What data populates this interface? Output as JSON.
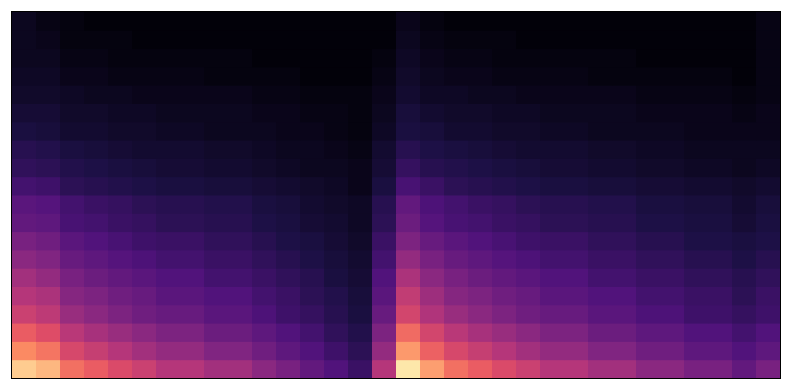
{
  "chart_data": {
    "type": "heatmap",
    "colormap": "magma",
    "origin": "lower",
    "zlim": [
      0,
      0.9
    ],
    "z": [
      [
        0.81,
        0.77,
        0.63,
        0.59,
        0.54,
        0.5,
        0.45,
        0.45,
        0.41,
        0.41,
        0.36,
        0.32,
        0.27,
        0.23,
        0.18,
        0.45,
        0.86,
        0.72,
        0.63,
        0.59,
        0.54,
        0.5,
        0.45,
        0.45,
        0.41,
        0.41,
        0.36,
        0.36,
        0.32,
        0.32,
        0.27,
        0.32
      ],
      [
        0.68,
        0.64,
        0.53,
        0.49,
        0.45,
        0.41,
        0.38,
        0.38,
        0.34,
        0.34,
        0.3,
        0.26,
        0.23,
        0.19,
        0.15,
        0.38,
        0.71,
        0.6,
        0.53,
        0.49,
        0.45,
        0.41,
        0.38,
        0.38,
        0.34,
        0.34,
        0.3,
        0.3,
        0.26,
        0.26,
        0.23,
        0.26
      ],
      [
        0.59,
        0.55,
        0.46,
        0.42,
        0.39,
        0.36,
        0.33,
        0.33,
        0.29,
        0.29,
        0.26,
        0.23,
        0.2,
        0.16,
        0.13,
        0.33,
        0.62,
        0.52,
        0.46,
        0.42,
        0.39,
        0.36,
        0.33,
        0.33,
        0.29,
        0.29,
        0.26,
        0.26,
        0.23,
        0.23,
        0.2,
        0.23
      ],
      [
        0.5,
        0.47,
        0.39,
        0.36,
        0.33,
        0.3,
        0.28,
        0.28,
        0.25,
        0.25,
        0.22,
        0.19,
        0.17,
        0.14,
        0.11,
        0.28,
        0.52,
        0.44,
        0.39,
        0.36,
        0.33,
        0.3,
        0.28,
        0.28,
        0.25,
        0.25,
        0.22,
        0.22,
        0.19,
        0.19,
        0.17,
        0.19
      ],
      [
        0.45,
        0.43,
        0.35,
        0.33,
        0.3,
        0.28,
        0.25,
        0.25,
        0.23,
        0.23,
        0.2,
        0.18,
        0.15,
        0.13,
        0.1,
        0.25,
        0.48,
        0.4,
        0.35,
        0.33,
        0.3,
        0.28,
        0.25,
        0.25,
        0.23,
        0.23,
        0.2,
        0.2,
        0.18,
        0.18,
        0.15,
        0.18
      ],
      [
        0.41,
        0.38,
        0.32,
        0.29,
        0.27,
        0.25,
        0.23,
        0.23,
        0.2,
        0.2,
        0.18,
        0.16,
        0.14,
        0.11,
        0.09,
        0.23,
        0.43,
        0.36,
        0.32,
        0.29,
        0.27,
        0.25,
        0.23,
        0.23,
        0.2,
        0.2,
        0.18,
        0.18,
        0.16,
        0.16,
        0.14,
        0.16
      ],
      [
        0.36,
        0.34,
        0.28,
        0.26,
        0.24,
        0.22,
        0.2,
        0.2,
        0.18,
        0.18,
        0.16,
        0.14,
        0.12,
        0.1,
        0.08,
        0.2,
        0.38,
        0.32,
        0.28,
        0.26,
        0.24,
        0.22,
        0.2,
        0.2,
        0.18,
        0.18,
        0.16,
        0.16,
        0.14,
        0.14,
        0.12,
        0.14
      ],
      [
        0.32,
        0.3,
        0.25,
        0.23,
        0.21,
        0.19,
        0.18,
        0.18,
        0.16,
        0.16,
        0.14,
        0.12,
        0.11,
        0.09,
        0.07,
        0.18,
        0.33,
        0.28,
        0.25,
        0.23,
        0.21,
        0.19,
        0.18,
        0.18,
        0.16,
        0.16,
        0.14,
        0.14,
        0.12,
        0.12,
        0.11,
        0.12
      ],
      [
        0.27,
        0.26,
        0.21,
        0.2,
        0.18,
        0.17,
        0.15,
        0.15,
        0.14,
        0.14,
        0.12,
        0.11,
        0.09,
        0.08,
        0.06,
        0.15,
        0.29,
        0.24,
        0.21,
        0.2,
        0.18,
        0.17,
        0.15,
        0.15,
        0.14,
        0.14,
        0.12,
        0.12,
        0.11,
        0.11,
        0.09,
        0.11
      ],
      [
        0.25,
        0.24,
        0.2,
        0.18,
        0.17,
        0.15,
        0.14,
        0.14,
        0.13,
        0.13,
        0.11,
        0.1,
        0.08,
        0.07,
        0.06,
        0.14,
        0.27,
        0.22,
        0.2,
        0.18,
        0.17,
        0.15,
        0.14,
        0.14,
        0.13,
        0.13,
        0.11,
        0.11,
        0.1,
        0.1,
        0.08,
        0.1
      ],
      [
        0.2,
        0.19,
        0.15,
        0.14,
        0.13,
        0.12,
        0.11,
        0.11,
        0.1,
        0.1,
        0.09,
        0.08,
        0.07,
        0.06,
        0.04,
        0.11,
        0.21,
        0.18,
        0.15,
        0.14,
        0.13,
        0.12,
        0.11,
        0.11,
        0.1,
        0.1,
        0.09,
        0.09,
        0.08,
        0.08,
        0.07,
        0.08
      ],
      [
        0.16,
        0.15,
        0.13,
        0.12,
        0.11,
        0.1,
        0.09,
        0.09,
        0.08,
        0.08,
        0.07,
        0.06,
        0.05,
        0.05,
        0.04,
        0.09,
        0.17,
        0.14,
        0.13,
        0.12,
        0.11,
        0.1,
        0.09,
        0.09,
        0.08,
        0.08,
        0.07,
        0.07,
        0.06,
        0.06,
        0.05,
        0.06
      ],
      [
        0.14,
        0.13,
        0.11,
        0.1,
        0.09,
        0.08,
        0.08,
        0.08,
        0.07,
        0.07,
        0.06,
        0.05,
        0.05,
        0.04,
        0.03,
        0.08,
        0.14,
        0.12,
        0.11,
        0.1,
        0.09,
        0.08,
        0.08,
        0.08,
        0.07,
        0.07,
        0.06,
        0.06,
        0.05,
        0.05,
        0.05,
        0.05
      ],
      [
        0.11,
        0.1,
        0.08,
        0.08,
        0.07,
        0.07,
        0.06,
        0.06,
        0.05,
        0.05,
        0.05,
        0.04,
        0.04,
        0.03,
        0.02,
        0.06,
        0.11,
        0.1,
        0.08,
        0.08,
        0.07,
        0.07,
        0.06,
        0.06,
        0.05,
        0.05,
        0.05,
        0.05,
        0.04,
        0.04,
        0.04,
        0.04
      ],
      [
        0.09,
        0.09,
        0.07,
        0.07,
        0.06,
        0.06,
        0.05,
        0.05,
        0.05,
        0.05,
        0.04,
        0.04,
        0.03,
        0.03,
        0.02,
        0.05,
        0.1,
        0.08,
        0.07,
        0.07,
        0.06,
        0.06,
        0.05,
        0.05,
        0.05,
        0.05,
        0.04,
        0.04,
        0.04,
        0.04,
        0.03,
        0.04
      ],
      [
        0.07,
        0.07,
        0.06,
        0.05,
        0.05,
        0.04,
        0.04,
        0.04,
        0.04,
        0.04,
        0.03,
        0.03,
        0.02,
        0.02,
        0.02,
        0.04,
        0.08,
        0.06,
        0.06,
        0.05,
        0.05,
        0.04,
        0.04,
        0.04,
        0.04,
        0.04,
        0.03,
        0.03,
        0.03,
        0.03,
        0.02,
        0.03
      ],
      [
        0.06,
        0.06,
        0.04,
        0.04,
        0.03,
        0.03,
        0.03,
        0.03,
        0.02,
        0.02,
        0.02,
        0.02,
        0.01,
        0.01,
        0.01,
        0.03,
        0.07,
        0.05,
        0.04,
        0.04,
        0.03,
        0.03,
        0.03,
        0.03,
        0.02,
        0.02,
        0.02,
        0.02,
        0.02,
        0.02,
        0.01,
        0.03
      ],
      [
        0.05,
        0.05,
        0.03,
        0.03,
        0.02,
        0.02,
        0.02,
        0.02,
        0.02,
        0.02,
        0.01,
        0.01,
        0.01,
        0.01,
        0.01,
        0.02,
        0.06,
        0.04,
        0.03,
        0.03,
        0.02,
        0.02,
        0.02,
        0.02,
        0.02,
        0.02,
        0.01,
        0.01,
        0.01,
        0.01,
        0.01,
        0.03
      ],
      [
        0.05,
        0.04,
        0.02,
        0.02,
        0.02,
        0.01,
        0.01,
        0.01,
        0.01,
        0.01,
        0.01,
        0.01,
        0.01,
        0.01,
        0.01,
        0.01,
        0.05,
        0.03,
        0.02,
        0.02,
        0.02,
        0.01,
        0.01,
        0.01,
        0.01,
        0.01,
        0.01,
        0.01,
        0.01,
        0.01,
        0.01,
        0.03
      ],
      [
        0.05,
        0.03,
        0.02,
        0.01,
        0.01,
        0.01,
        0.01,
        0.01,
        0.01,
        0.01,
        0.01,
        0.01,
        0.01,
        0.01,
        0.01,
        0.01,
        0.04,
        0.02,
        0.01,
        0.01,
        0.01,
        0.01,
        0.01,
        0.01,
        0.01,
        0.01,
        0.01,
        0.01,
        0.01,
        0.01,
        0.01,
        0.03
      ]
    ]
  }
}
